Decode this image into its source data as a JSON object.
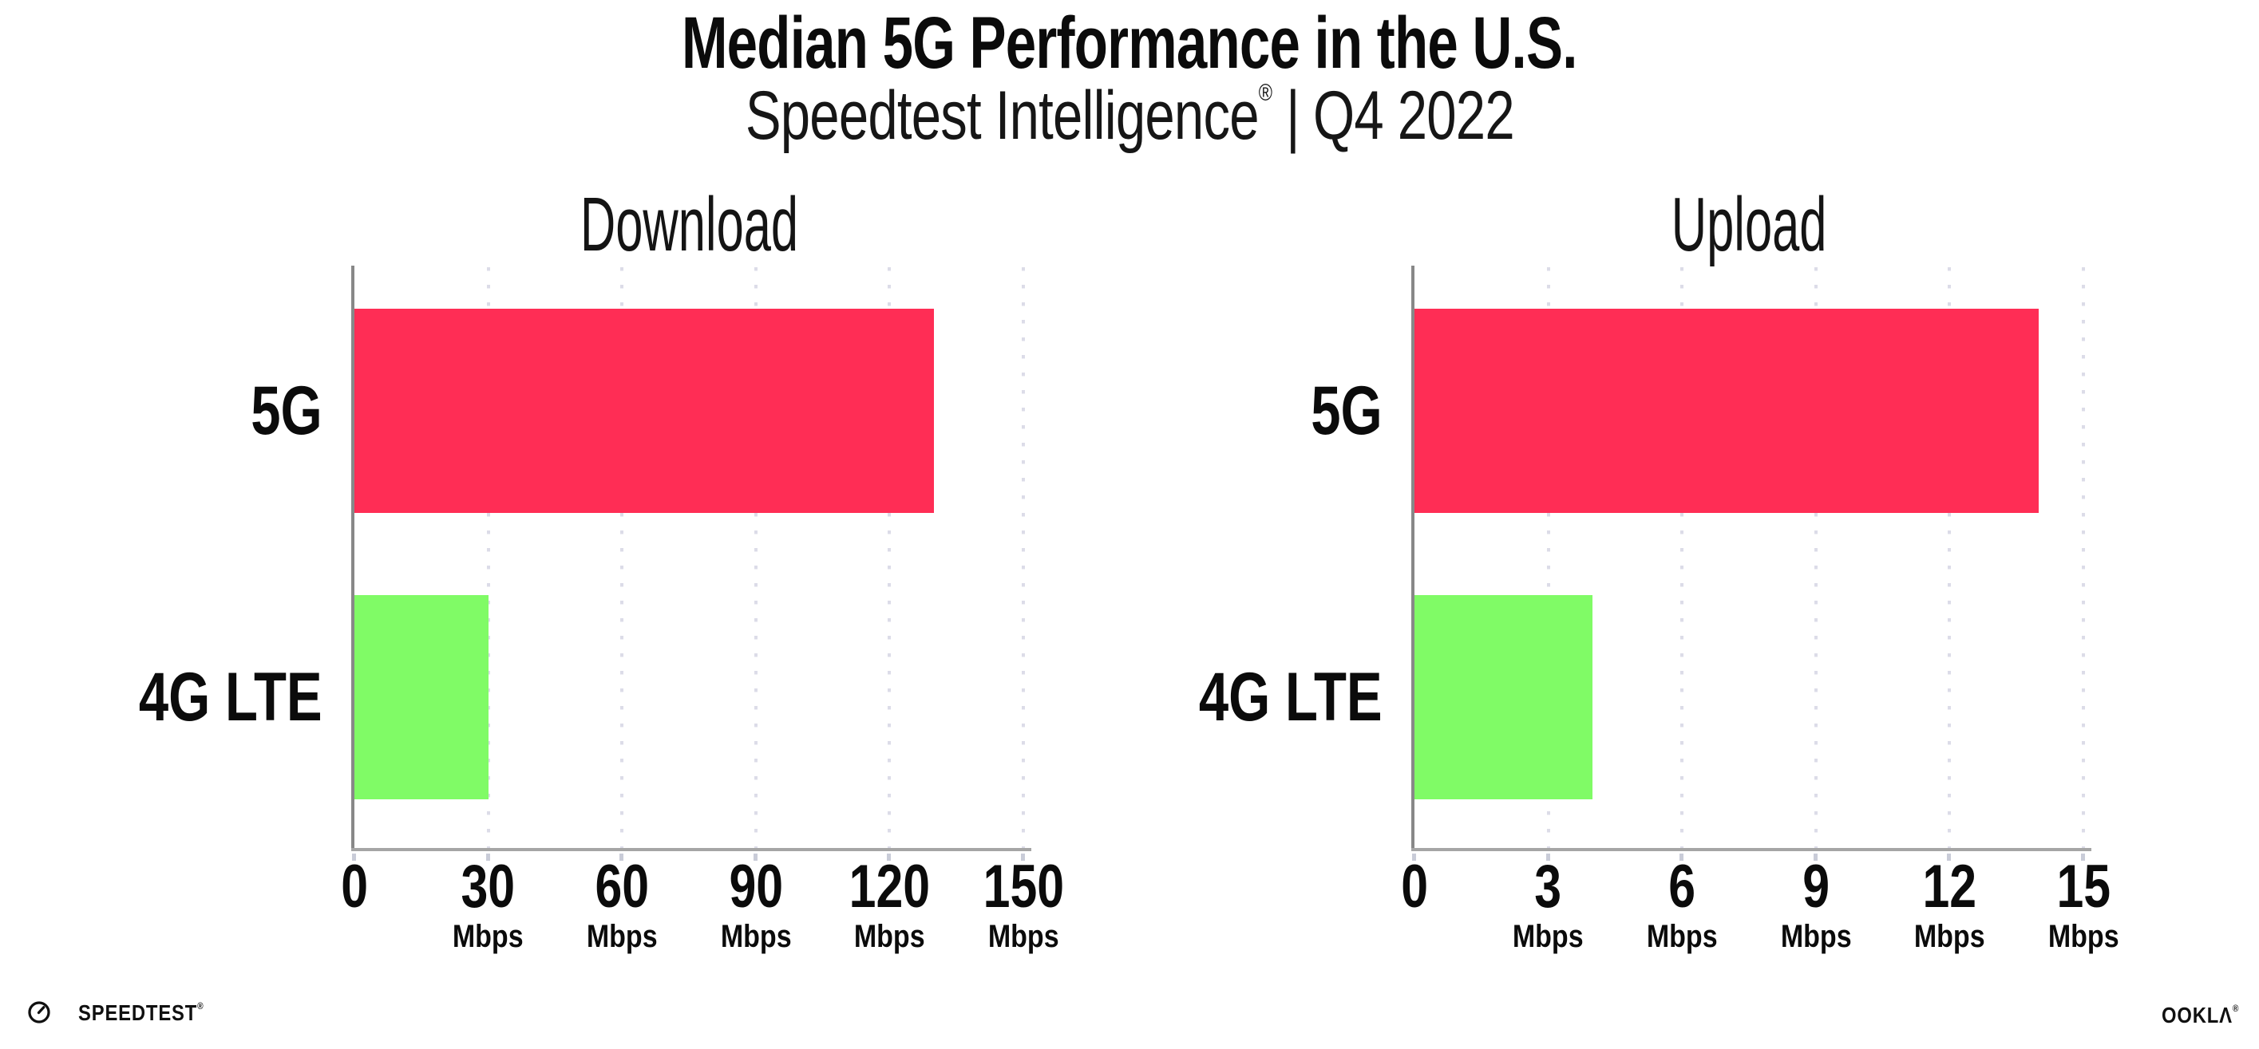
{
  "header": {
    "title": "Median 5G Performance in the U.S.",
    "subtitle_brand": "Speedtest Intelligence",
    "subtitle_registered": "®",
    "subtitle_separator": "|",
    "subtitle_period": "Q4 2022"
  },
  "chart_data": [
    {
      "type": "bar",
      "orientation": "horizontal",
      "title": "Download",
      "categories": [
        "5G",
        "4G LTE"
      ],
      "values": [
        130,
        30
      ],
      "unit": "Mbps",
      "xlim": [
        0,
        150
      ],
      "xticks": [
        0,
        30,
        60,
        90,
        120,
        150
      ],
      "bar_colors": [
        "#FF2D55",
        "#80FB66"
      ],
      "grid": "vertical-dotted",
      "legend": "none"
    },
    {
      "type": "bar",
      "orientation": "horizontal",
      "title": "Upload",
      "categories": [
        "5G",
        "4G LTE"
      ],
      "values": [
        14,
        4
      ],
      "unit": "Mbps",
      "xlim": [
        0,
        15
      ],
      "xticks": [
        0,
        3,
        6,
        9,
        12,
        15
      ],
      "bar_colors": [
        "#FF2D55",
        "#80FB66"
      ],
      "grid": "vertical-dotted",
      "legend": "none"
    }
  ],
  "colors": {
    "bar_5g": "#FF2D55",
    "bar_4g_lte": "#80FB66",
    "axis_line": "#888888",
    "gridline_dots": "#DCDCE8",
    "text": "#0B0B0B"
  },
  "footer": {
    "speedtest_logo": "SPEEDTEST",
    "speedtest_registered": "®",
    "ookla_logo": "OOKLΛ",
    "ookla_registered": "®"
  }
}
